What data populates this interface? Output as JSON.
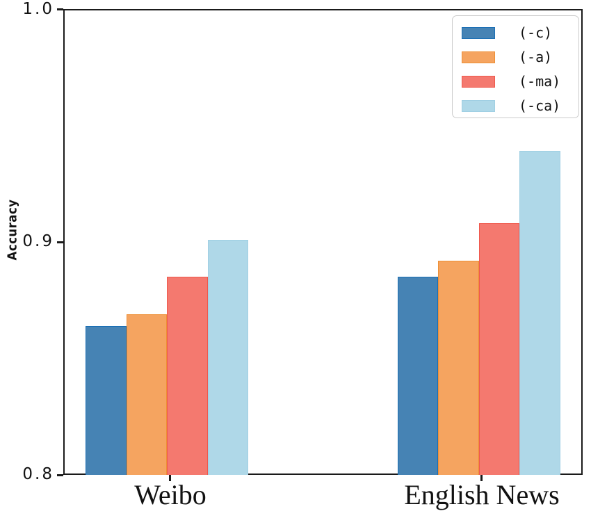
{
  "chart_data": {
    "type": "bar",
    "title": "",
    "xlabel": "",
    "ylabel": "Accuracy",
    "categories": [
      "Weibo",
      "English News"
    ],
    "series": [
      {
        "name": "(-c)",
        "fill": "#4683B4",
        "edge": "#1B6FB5",
        "values": [
          0.864,
          0.885
        ]
      },
      {
        "name": "(-a)",
        "fill": "#F5A460",
        "edge": "#EE8F35",
        "values": [
          0.869,
          0.892
        ]
      },
      {
        "name": "(-ma)",
        "fill": "#F4796F",
        "edge": "#EF584C",
        "values": [
          0.885,
          0.908
        ]
      },
      {
        "name": "(-ca)",
        "fill": "#AFD8E8",
        "edge": "#9FCFE3",
        "values": [
          0.901,
          0.939
        ]
      }
    ],
    "ylim": [
      0.8,
      1.0
    ],
    "ytick_labels": [
      "1.0",
      "0.9",
      "0.8"
    ],
    "yticks": [
      1.0,
      0.9,
      0.8
    ],
    "grid": "off",
    "legend_position": "upper right",
    "spine_color": "#1a1a1a"
  }
}
